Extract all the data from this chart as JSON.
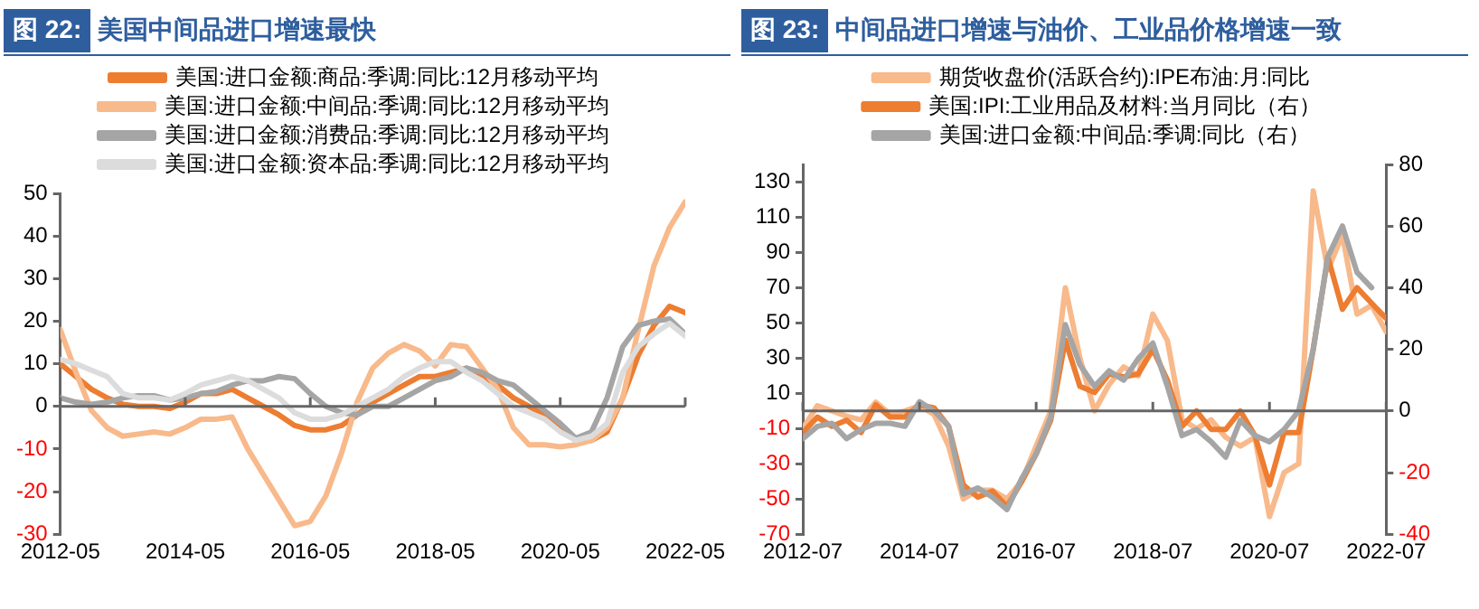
{
  "chart_data": [
    {
      "type": "line",
      "title": "图 22: 美国中间品进口增速最快",
      "x": [
        "2012-05",
        "2012-08",
        "2012-11",
        "2013-02",
        "2013-05",
        "2013-08",
        "2013-11",
        "2014-02",
        "2014-05",
        "2014-08",
        "2014-11",
        "2015-02",
        "2015-05",
        "2015-08",
        "2015-11",
        "2016-02",
        "2016-05",
        "2016-08",
        "2016-11",
        "2017-02",
        "2017-05",
        "2017-08",
        "2017-11",
        "2018-02",
        "2018-05",
        "2018-08",
        "2018-11",
        "2019-02",
        "2019-05",
        "2019-08",
        "2019-11",
        "2020-02",
        "2020-05",
        "2020-08",
        "2020-11",
        "2021-02",
        "2021-05",
        "2021-08",
        "2021-11",
        "2022-02",
        "2022-05"
      ],
      "series": [
        {
          "name": "美国:进口金额:商品:季调:同比:12月移动平均",
          "color": "#ed7d31",
          "values": [
            10,
            7,
            4,
            2,
            0.5,
            0,
            0,
            -0.5,
            1,
            3,
            3,
            4,
            2,
            0,
            -2,
            -4.5,
            -5.5,
            -5.5,
            -4.5,
            -2,
            1,
            3,
            5,
            7,
            7,
            8,
            9,
            7,
            5,
            2,
            0,
            -2,
            -5,
            -8,
            -8,
            -6,
            2,
            12,
            19,
            23.5,
            22
          ]
        },
        {
          "name": "美国:进口金额:中间品:季调:同比:12月移动平均",
          "color": "#f8b98b",
          "values": [
            18,
            8,
            -1,
            -5,
            -7,
            -6.5,
            -6,
            -6.5,
            -5,
            -3,
            -3,
            -2.5,
            -10,
            -16,
            -22,
            -28,
            -27,
            -21,
            -11,
            1,
            9,
            12.5,
            14.5,
            13,
            9.5,
            14.5,
            14,
            9,
            4,
            -5,
            -9,
            -9,
            -9.5,
            -9,
            -8,
            -5,
            2,
            18,
            33,
            42,
            48
          ]
        },
        {
          "name": "美国:进口金额:消费品:季调:同比:12月移动平均",
          "color": "#a5a5a5",
          "values": [
            2,
            1,
            0.5,
            1,
            2,
            2.5,
            2.5,
            1.5,
            2,
            3,
            3.5,
            5,
            6,
            6,
            7,
            6.5,
            3,
            0,
            -1.5,
            -2,
            0,
            0,
            2,
            4,
            6,
            7,
            9,
            8,
            6,
            5,
            2,
            -1,
            -4,
            -7.5,
            -6,
            2,
            14,
            19,
            20,
            20.5,
            17
          ]
        },
        {
          "name": "美国:进口金额:资本品:季调:同比:12月移动平均",
          "color": "#dcdcdc",
          "values": [
            11,
            10,
            8.5,
            7,
            3,
            2,
            2,
            1.5,
            3,
            5,
            6,
            7,
            6,
            4,
            2,
            -1.5,
            -3,
            -3,
            -2,
            0,
            2,
            4,
            7,
            9,
            10.5,
            10.5,
            8,
            6,
            3,
            0,
            -1.5,
            -3,
            -6,
            -8,
            -7,
            -4,
            8,
            14,
            17,
            19.5,
            16.5
          ]
        }
      ],
      "xlim": [
        "2012-05",
        "2022-05"
      ],
      "xticks": [
        "2012-05",
        "2014-05",
        "2016-05",
        "2018-05",
        "2020-05",
        "2022-05"
      ],
      "ylim": [
        -30,
        50
      ],
      "yticks": [
        -30,
        -20,
        -10,
        0,
        10,
        20,
        30,
        40,
        50
      ],
      "ref_lines": [
        {
          "axis": "y",
          "value": 0,
          "color": "#666666"
        }
      ],
      "grid": false,
      "legend": "top",
      "marker": "none",
      "line_style": "solid"
    },
    {
      "type": "line",
      "title": "图 23: 中间品进口增速与油价、工业品价格增速一致",
      "x": [
        "2012-07",
        "2012-10",
        "2013-01",
        "2013-04",
        "2013-07",
        "2013-10",
        "2014-01",
        "2014-04",
        "2014-07",
        "2014-10",
        "2015-01",
        "2015-04",
        "2015-07",
        "2015-10",
        "2016-01",
        "2016-04",
        "2016-07",
        "2016-10",
        "2017-01",
        "2017-04",
        "2017-07",
        "2017-10",
        "2018-01",
        "2018-04",
        "2018-07",
        "2018-10",
        "2019-01",
        "2019-04",
        "2019-07",
        "2019-10",
        "2020-01",
        "2020-04",
        "2020-07",
        "2020-10",
        "2021-01",
        "2021-04",
        "2021-07",
        "2021-10",
        "2022-01",
        "2022-04",
        "2022-07"
      ],
      "series": [
        {
          "name": "期货收盘价(活跃合约):IPE布油:月:同比",
          "color": "#f8b98b",
          "values": [
            -10,
            3,
            0,
            -3,
            -5,
            5,
            -2,
            0,
            3,
            -2,
            -20,
            -50,
            -45,
            -45,
            -50,
            -40,
            -20,
            0,
            70,
            30,
            0,
            15,
            25,
            20,
            55,
            40,
            -5,
            -10,
            -5,
            -15,
            -20,
            -15,
            -60,
            -35,
            -30,
            125,
            80,
            100,
            55,
            60,
            45
          ]
        },
        {
          "name": "美国:IPI:工业用品及材料:当月同比（右）",
          "color": "#ed7d31",
          "axis": "y2",
          "values": [
            -7,
            -2,
            -5,
            -3,
            -7,
            2,
            -2,
            -2,
            2,
            1,
            -5,
            -24,
            -28,
            -26,
            -31,
            -23,
            -14,
            -3,
            23,
            8,
            6,
            12,
            11,
            12,
            20,
            10,
            -5,
            0,
            -6,
            -6,
            0,
            -8,
            -24,
            -7,
            -7,
            20,
            50,
            33,
            40,
            35,
            30
          ]
        },
        {
          "name": "美国:进口金额:中间品:季调:同比（右）",
          "color": "#a5a5a5",
          "axis": "y2",
          "values": [
            -9,
            -5,
            -4,
            -9,
            -6,
            -4,
            -4,
            -5,
            3,
            0,
            -5,
            -27,
            -25,
            -28,
            -32,
            -22,
            -14,
            -2,
            28,
            15,
            8,
            13,
            10,
            17,
            22,
            8,
            -8,
            -6,
            -10,
            -15,
            -3,
            -8,
            -10,
            -6,
            0,
            20,
            50,
            60,
            45,
            40,
            null
          ]
        }
      ],
      "xlim": [
        "2012-07",
        "2022-07"
      ],
      "xticks": [
        "2012-07",
        "2014-07",
        "2016-07",
        "2018-07",
        "2020-07",
        "2022-07"
      ],
      "ylim": [
        -70,
        140
      ],
      "yticks": [
        -70,
        -50,
        -30,
        -10,
        10,
        30,
        50,
        70,
        90,
        110,
        130
      ],
      "y2lim": [
        -40,
        80
      ],
      "y2ticks": [
        -40,
        -20,
        0,
        20,
        40,
        60,
        80
      ],
      "ref_lines": [
        {
          "axis": "y",
          "value": 0,
          "color": "#666666"
        }
      ],
      "grid": false,
      "legend": "top",
      "marker": "none",
      "line_style": "solid"
    }
  ]
}
